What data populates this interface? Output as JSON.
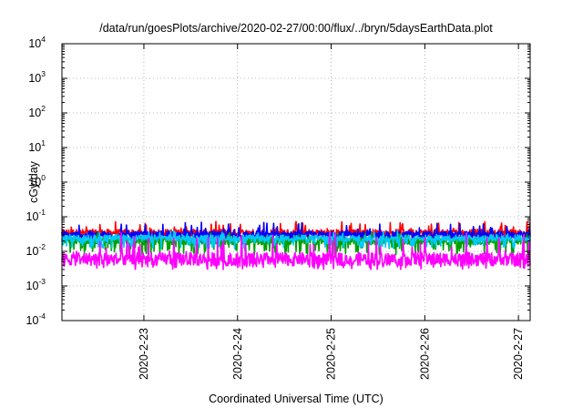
{
  "chart_data": {
    "type": "line",
    "title": "/data/run/goesPlots/archive/2020-02-27/00:00/flux/../bryn/5daysEarthData.plot",
    "xlabel": "Coordinated Universal Time (UTC)",
    "ylabel": "cGy/day",
    "y_scale": "log",
    "ylim": [
      0.0001,
      10000
    ],
    "y_ticks": [
      {
        "value": 0.0001,
        "base": "10",
        "exp": "-4"
      },
      {
        "value": 0.001,
        "base": "10",
        "exp": "-3"
      },
      {
        "value": 0.01,
        "base": "10",
        "exp": "-2"
      },
      {
        "value": 0.1,
        "base": "10",
        "exp": "-1"
      },
      {
        "value": 1,
        "base": "10",
        "exp": "0"
      },
      {
        "value": 10,
        "base": "10",
        "exp": "1"
      },
      {
        "value": 100,
        "base": "10",
        "exp": "2"
      },
      {
        "value": 1000,
        "base": "10",
        "exp": "3"
      },
      {
        "value": 10000,
        "base": "10",
        "exp": "4"
      }
    ],
    "xlim": [
      "2020-02-22T03:00",
      "2020-02-27T03:00"
    ],
    "x_ticks": [
      {
        "value": "2020-02-23T00:00",
        "label": "2020-2-23"
      },
      {
        "value": "2020-02-24T00:00",
        "label": "2020-2-24"
      },
      {
        "value": "2020-02-25T00:00",
        "label": "2020-2-25"
      },
      {
        "value": "2020-02-26T00:00",
        "label": "2020-2-26"
      },
      {
        "value": "2020-02-27T00:00",
        "label": "2020-2-27"
      }
    ],
    "grid": true,
    "series": [
      {
        "color": "#ff0000",
        "typical": 0.035,
        "low": 0.022,
        "high": 0.075
      },
      {
        "color": "#0000ff",
        "typical": 0.03,
        "low": 0.018,
        "high": 0.07
      },
      {
        "color": "#00a000",
        "typical": 0.02,
        "low": 0.008,
        "high": 0.035
      },
      {
        "color": "#00c8ff",
        "typical": 0.024,
        "low": 0.012,
        "high": 0.04
      },
      {
        "color": "#ff00ff",
        "typical": 0.006,
        "low": 0.003,
        "high": 0.035
      }
    ]
  }
}
